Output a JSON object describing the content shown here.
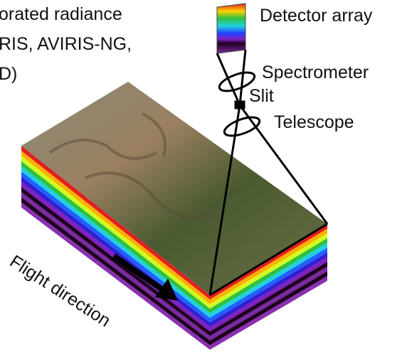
{
  "header": {
    "lines": [
      "orated radiance",
      "RIS, AVIRIS-NG,",
      "D)"
    ]
  },
  "labels": {
    "detector": "Detector array",
    "spectrometer": "Spectrometer",
    "slit": "Slit",
    "telescope": "Telescope",
    "flight": "Flight direction"
  }
}
